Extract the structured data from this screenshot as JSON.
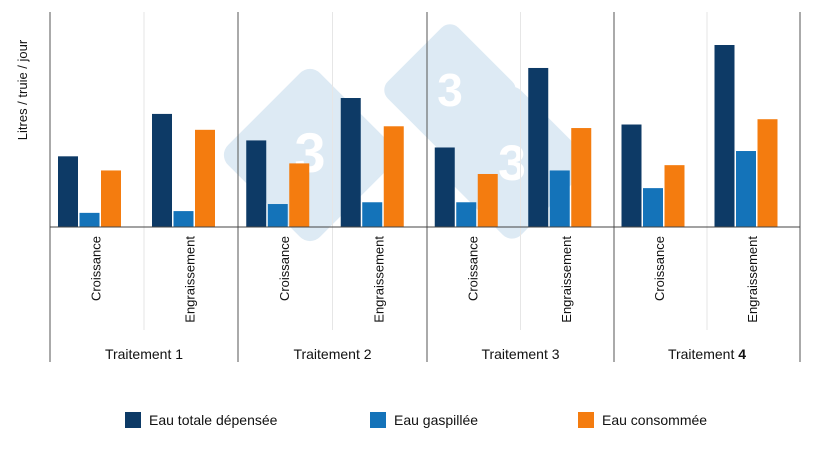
{
  "chart_data": {
    "type": "bar",
    "ylabel": "Litres / truie / jour",
    "groups": [
      {
        "label_text": "Traitement ",
        "label_strong": "1",
        "categories": [
          "Croissance",
          "Engraissement"
        ]
      },
      {
        "label_text": "Traitement ",
        "label_strong": "2",
        "categories": [
          "Croissance",
          "Engraissement"
        ]
      },
      {
        "label_text": "Traitement ",
        "label_strong": "3",
        "categories": [
          "Croissance",
          "Engraissement"
        ]
      },
      {
        "label_text": "Traitement ",
        "label_strong": "4",
        "categories": [
          "Croissance",
          "Engraissement"
        ]
      }
    ],
    "series": [
      {
        "name": "Eau totale dépensée",
        "color": "#0d3a66",
        "values": [
          4.0,
          6.4,
          4.9,
          7.3,
          4.5,
          9.0,
          5.8,
          10.3
        ]
      },
      {
        "name": "Eau gaspillée",
        "color": "#1473b9",
        "values": [
          0.8,
          0.9,
          1.3,
          1.4,
          1.4,
          3.2,
          2.2,
          4.3
        ]
      },
      {
        "name": "Eau consommée",
        "color": "#f47c0f",
        "values": [
          3.2,
          5.5,
          3.6,
          5.7,
          3.0,
          5.6,
          3.5,
          6.1
        ]
      }
    ],
    "ylim": [
      0,
      11
    ],
    "grid": false,
    "legend_position": "bottom",
    "watermark": "333"
  }
}
